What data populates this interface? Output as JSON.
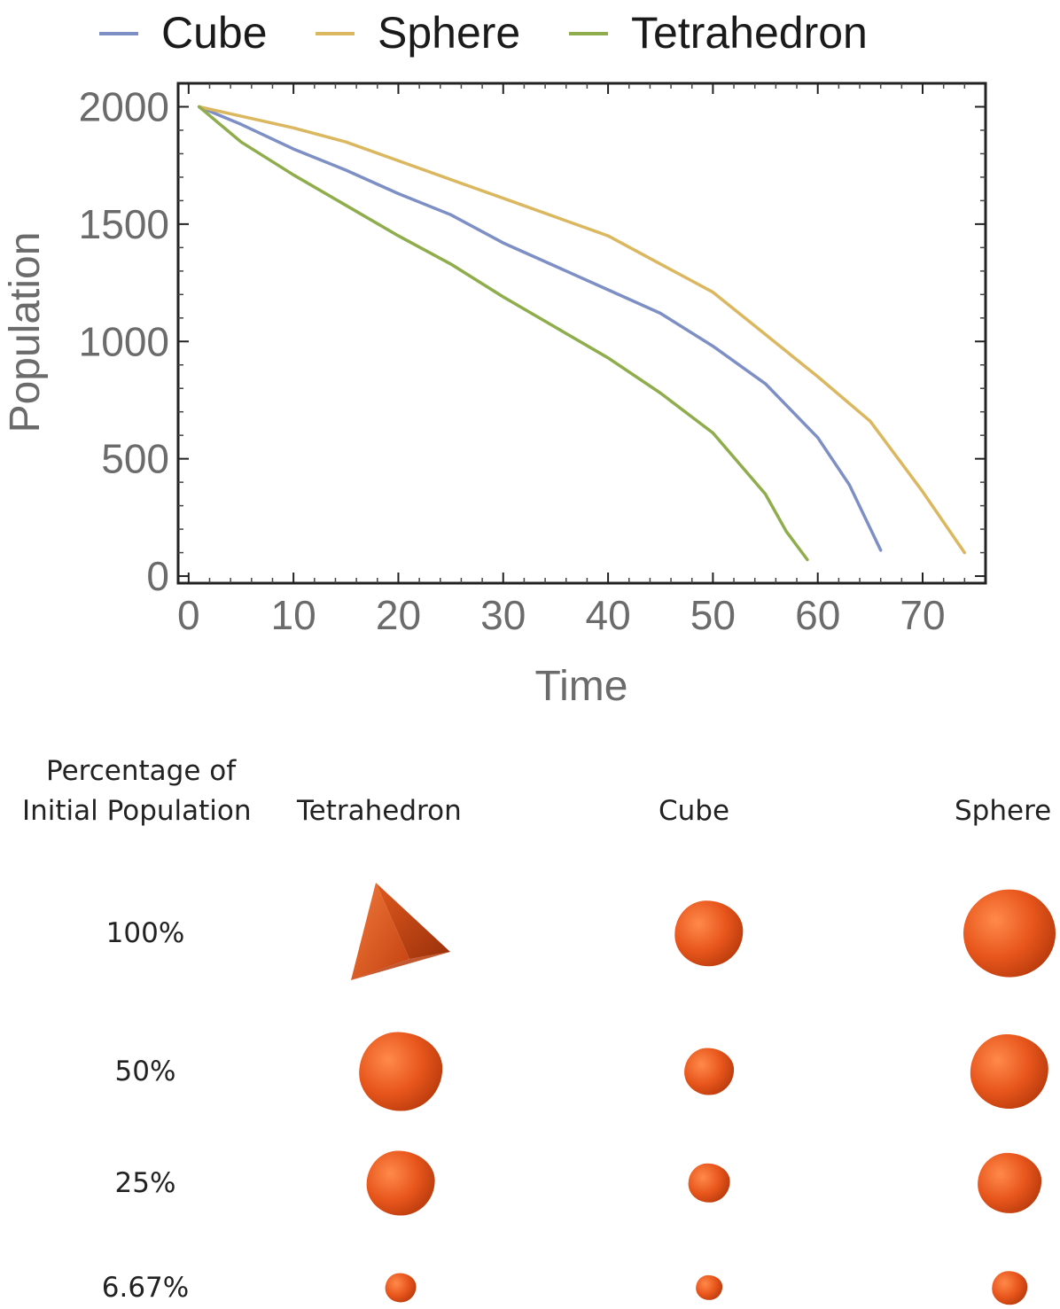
{
  "chart_data": {
    "type": "line",
    "xlabel": "Time",
    "ylabel": "Population",
    "xlim": [
      -1,
      76
    ],
    "ylim": [
      -30,
      2100
    ],
    "xticks": [
      0,
      10,
      20,
      30,
      40,
      50,
      60,
      70
    ],
    "yticks": [
      0,
      500,
      1000,
      1500,
      2000
    ],
    "legend_position": "top",
    "grid": false,
    "series": [
      {
        "name": "Cube",
        "color": "#7d8fc4",
        "x": [
          1,
          5,
          10,
          15,
          20,
          25,
          30,
          35,
          40,
          45,
          50,
          55,
          60,
          63,
          66
        ],
        "y": [
          2000,
          1925,
          1820,
          1730,
          1630,
          1540,
          1420,
          1320,
          1220,
          1120,
          980,
          820,
          590,
          390,
          110
        ]
      },
      {
        "name": "Sphere",
        "color": "#dbb760",
        "x": [
          1,
          5,
          10,
          15,
          20,
          25,
          30,
          35,
          40,
          45,
          50,
          55,
          60,
          65,
          70,
          74
        ],
        "y": [
          2000,
          1960,
          1910,
          1850,
          1770,
          1690,
          1610,
          1530,
          1450,
          1330,
          1210,
          1030,
          850,
          660,
          360,
          100
        ]
      },
      {
        "name": "Tetrahedron",
        "color": "#8fad4c",
        "x": [
          1,
          5,
          10,
          15,
          20,
          25,
          30,
          35,
          40,
          45,
          50,
          55,
          57,
          59
        ],
        "y": [
          2000,
          1850,
          1710,
          1580,
          1450,
          1330,
          1190,
          1060,
          930,
          780,
          610,
          350,
          190,
          70
        ]
      }
    ]
  },
  "table": {
    "header_percentage": [
      "Percentage of",
      "Initial Population"
    ],
    "header_shapes": [
      "Tetrahedron",
      "Cube",
      "Sphere"
    ],
    "rows": [
      {
        "label": "100%",
        "sizes": [
          1.0,
          0.86,
          1.0
        ]
      },
      {
        "label": "50%",
        "sizes": [
          0.78,
          0.62,
          0.85
        ]
      },
      {
        "label": "25%",
        "sizes": [
          0.64,
          0.52,
          0.69
        ]
      },
      {
        "label": "6.67%",
        "sizes": [
          0.29,
          0.33,
          0.38
        ]
      }
    ]
  }
}
